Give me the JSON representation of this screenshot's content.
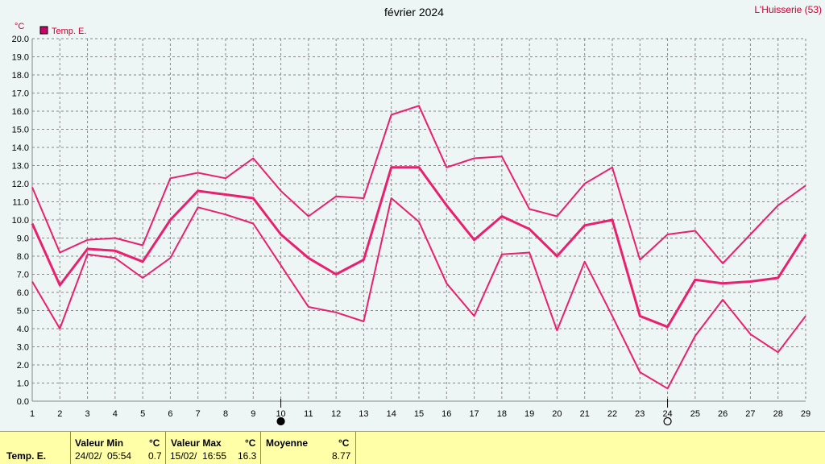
{
  "chart_data": {
    "type": "line",
    "title": "février 2024",
    "station": "L'Huisserie (53)",
    "unit": "°C",
    "legend": "Temp. E.",
    "legend_position": "top-left",
    "grid": true,
    "ylim": [
      0,
      20
    ],
    "yticks": [
      "0.0",
      "1.0",
      "2.0",
      "3.0",
      "4.0",
      "5.0",
      "6.0",
      "7.0",
      "8.0",
      "9.0",
      "10.0",
      "11.0",
      "12.0",
      "13.0",
      "14.0",
      "15.0",
      "16.0",
      "17.0",
      "18.0",
      "19.0",
      "20.0"
    ],
    "x": [
      1,
      2,
      3,
      4,
      5,
      6,
      7,
      8,
      9,
      10,
      11,
      12,
      13,
      14,
      15,
      16,
      17,
      18,
      19,
      20,
      21,
      22,
      23,
      24,
      25,
      26,
      27,
      28,
      29
    ],
    "series": [
      {
        "role": "max",
        "values": [
          11.8,
          8.2,
          8.9,
          9.0,
          8.6,
          12.3,
          12.6,
          12.3,
          13.4,
          11.6,
          10.2,
          11.3,
          11.2,
          15.8,
          16.3,
          12.9,
          13.4,
          13.5,
          10.6,
          10.2,
          12.0,
          12.9,
          7.8,
          9.2,
          9.4,
          7.6,
          9.2,
          10.8,
          11.9
        ]
      },
      {
        "role": "mean",
        "values": [
          9.8,
          6.4,
          8.4,
          8.3,
          7.7,
          10.0,
          11.6,
          11.4,
          11.2,
          9.2,
          7.9,
          7.0,
          7.8,
          12.9,
          12.9,
          10.8,
          8.9,
          10.2,
          9.5,
          8.0,
          9.7,
          10.0,
          4.7,
          4.1,
          6.7,
          6.5,
          6.6,
          6.8,
          9.2
        ]
      },
      {
        "role": "min",
        "values": [
          6.6,
          4.0,
          8.1,
          7.9,
          6.8,
          7.9,
          10.7,
          10.3,
          9.8,
          7.5,
          5.2,
          4.9,
          4.4,
          11.2,
          9.9,
          6.5,
          4.7,
          8.1,
          8.2,
          3.9,
          7.7,
          4.7,
          1.6,
          0.7,
          3.6,
          5.6,
          3.7,
          2.7,
          4.7
        ]
      }
    ],
    "moon_markers": [
      {
        "day": 10,
        "phase": "new-moon"
      },
      {
        "day": 24,
        "phase": "full-moon"
      }
    ],
    "colors": {
      "line": "#e8206e",
      "grid": "#888888",
      "legend": "#cc0066",
      "background": "#eef5f5"
    }
  },
  "stats": {
    "series_label": "Temp. E.",
    "min_label": "Valeur Min",
    "min_unit": "°C",
    "min_time": "24/02/  05:54",
    "min_value": "0.7",
    "max_label": "Valeur Max",
    "max_unit": "°C",
    "max_time": "15/02/  16:55",
    "max_value": "16.3",
    "mean_label": "Moyenne",
    "mean_unit": "°C",
    "mean_value": "8.77"
  }
}
